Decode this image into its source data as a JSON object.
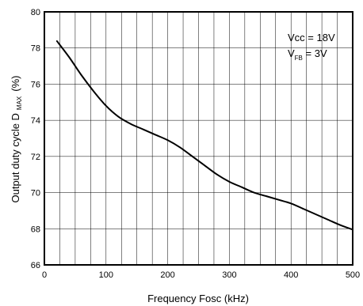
{
  "chart_data": {
    "type": "line",
    "title": "",
    "xlabel": "Frequency Fosc  (kHz)",
    "ylabel": {
      "main": "Output duty cycle D",
      "subscript": "MAX",
      "unit": "(%)"
    },
    "xlim": [
      0,
      500
    ],
    "ylim": [
      66,
      80
    ],
    "x_ticks": [
      0,
      100,
      200,
      300,
      400,
      500
    ],
    "y_ticks": [
      66,
      68,
      70,
      72,
      74,
      76,
      78,
      80
    ],
    "x_minor_step": 25,
    "grid": true,
    "annotations": {
      "vcc": "Vcc = 18V",
      "vfb_main": "V",
      "vfb_sub": "FB",
      "vfb_value": " = 3V"
    },
    "series": [
      {
        "x": [
          20,
          40,
          60,
          80,
          100,
          120,
          140,
          160,
          180,
          200,
          220,
          240,
          260,
          280,
          300,
          320,
          340,
          360,
          380,
          400,
          420,
          440,
          460,
          480,
          500
        ],
        "y": [
          78.4,
          77.5,
          76.5,
          75.6,
          74.8,
          74.2,
          73.8,
          73.5,
          73.2,
          72.9,
          72.5,
          72.0,
          71.5,
          71.0,
          70.6,
          70.3,
          70.0,
          69.8,
          69.6,
          69.4,
          69.1,
          68.8,
          68.5,
          68.2,
          67.95
        ]
      }
    ]
  }
}
